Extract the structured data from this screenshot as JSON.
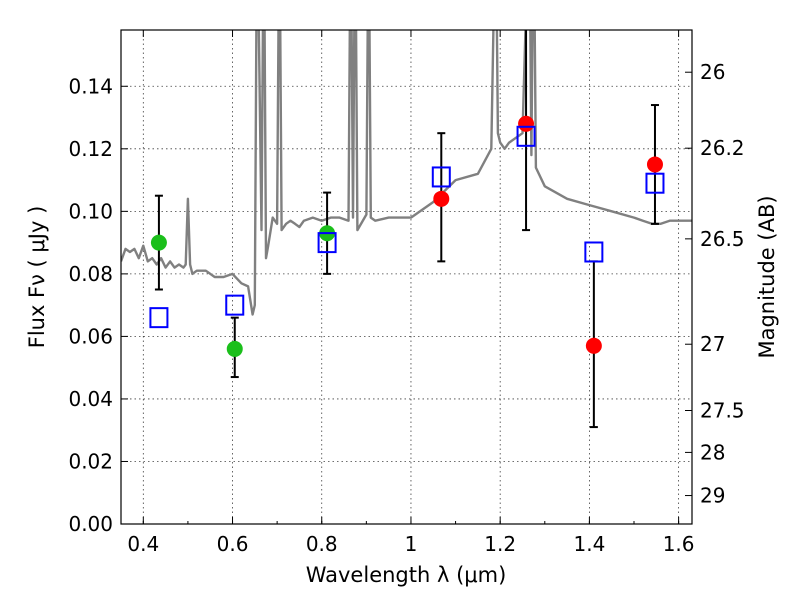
{
  "chart_data": {
    "type": "scatter",
    "title": "",
    "xlabel": "Wavelength  λ (μm)",
    "ylabel": "Flux  Fν  ( μJy )",
    "ylabel_right": "Magnitude (AB)",
    "xlim": [
      0.35,
      1.63
    ],
    "ylim": [
      0.0,
      0.158
    ],
    "grid": true,
    "x_ticks": [
      0.4,
      0.6,
      0.8,
      1.0,
      1.2,
      1.4,
      1.6
    ],
    "x_tick_labels": [
      "0.4",
      "0.6",
      "0.8",
      "1",
      "1.2",
      "1.4",
      "1.6"
    ],
    "y_ticks": [
      0.0,
      0.02,
      0.04,
      0.06,
      0.08,
      0.1,
      0.12,
      0.14
    ],
    "y_tick_labels": [
      "0.00",
      "0.02",
      "0.04",
      "0.06",
      "0.08",
      "0.10",
      "0.12",
      "0.14"
    ],
    "right_axis_ticks": [
      {
        "label": "26",
        "flux": 0.1445
      },
      {
        "label": "26.2",
        "flux": 0.1202
      },
      {
        "label": "26.5",
        "flux": 0.0912
      },
      {
        "label": "27",
        "flux": 0.0575
      },
      {
        "label": "27.5",
        "flux": 0.0363
      },
      {
        "label": "28",
        "flux": 0.0229
      },
      {
        "label": "29",
        "flux": 0.0091
      }
    ],
    "series": [
      {
        "name": "model spectrum",
        "kind": "line",
        "color": "#808080",
        "x": [
          0.35,
          0.36,
          0.37,
          0.38,
          0.39,
          0.4,
          0.41,
          0.42,
          0.43,
          0.44,
          0.45,
          0.46,
          0.47,
          0.48,
          0.49,
          0.495,
          0.5,
          0.505,
          0.51,
          0.52,
          0.54,
          0.56,
          0.58,
          0.6,
          0.62,
          0.635,
          0.645,
          0.65,
          0.655,
          0.665,
          0.67,
          0.675,
          0.68,
          0.69,
          0.7,
          0.705,
          0.71,
          0.72,
          0.73,
          0.74,
          0.75,
          0.76,
          0.78,
          0.8,
          0.82,
          0.84,
          0.86,
          0.865,
          0.87,
          0.875,
          0.88,
          0.9,
          0.905,
          0.91,
          0.92,
          0.95,
          1.0,
          1.05,
          1.1,
          1.15,
          1.18,
          1.19,
          1.195,
          1.2,
          1.21,
          1.22,
          1.25,
          1.265,
          1.27,
          1.275,
          1.28,
          1.3,
          1.35,
          1.4,
          1.45,
          1.5,
          1.52,
          1.54,
          1.56,
          1.58,
          1.6,
          1.62,
          1.63
        ],
        "y": [
          0.084,
          0.088,
          0.087,
          0.088,
          0.085,
          0.089,
          0.084,
          0.085,
          0.083,
          0.085,
          0.082,
          0.084,
          0.082,
          0.083,
          0.082,
          0.083,
          0.104,
          0.083,
          0.08,
          0.081,
          0.081,
          0.079,
          0.079,
          0.08,
          0.077,
          0.076,
          0.067,
          0.07,
          0.2,
          0.094,
          0.2,
          0.085,
          0.089,
          0.098,
          0.096,
          0.2,
          0.094,
          0.096,
          0.097,
          0.096,
          0.095,
          0.097,
          0.098,
          0.097,
          0.098,
          0.098,
          0.097,
          0.2,
          0.098,
          0.2,
          0.094,
          0.099,
          0.2,
          0.098,
          0.097,
          0.098,
          0.098,
          0.103,
          0.11,
          0.112,
          0.12,
          0.2,
          0.125,
          0.122,
          0.12,
          0.122,
          0.125,
          0.2,
          0.118,
          0.2,
          0.114,
          0.108,
          0.104,
          0.102,
          0.1,
          0.098,
          0.097,
          0.096,
          0.096,
          0.097,
          0.097,
          0.097,
          0.097
        ]
      },
      {
        "name": "observed (green)",
        "kind": "points",
        "color": "#1bbf1b",
        "x": [
          0.435,
          0.605,
          0.812
        ],
        "y": [
          0.09,
          0.056,
          0.093
        ],
        "err_low": [
          0.075,
          0.047,
          0.08
        ],
        "err_high": [
          0.105,
          0.066,
          0.106
        ]
      },
      {
        "name": "observed (red)",
        "kind": "points",
        "color": "#ff0000",
        "x": [
          1.068,
          1.258,
          1.41,
          1.547
        ],
        "y": [
          0.104,
          0.128,
          0.057,
          0.115
        ],
        "err_low": [
          0.084,
          0.094,
          0.031,
          0.096
        ],
        "err_high": [
          0.125,
          0.16,
          0.084,
          0.134
        ]
      },
      {
        "name": "model photometry",
        "kind": "squares",
        "color": "#0000ff",
        "x": [
          0.435,
          0.605,
          0.812,
          1.068,
          1.258,
          1.41,
          1.547
        ],
        "y": [
          0.066,
          0.07,
          0.09,
          0.111,
          0.124,
          0.087,
          0.109
        ]
      }
    ]
  }
}
